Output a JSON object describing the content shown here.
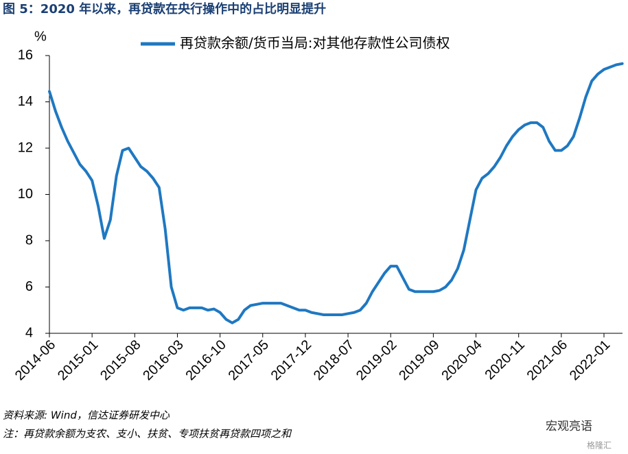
{
  "chart_data": {
    "type": "line",
    "title": "图 5：2020 年以来，再贷款在央行操作中的占比明显提升",
    "y_unit": "%",
    "categories": [
      "2014-06",
      null,
      null,
      null,
      null,
      null,
      null,
      "2015-01",
      null,
      null,
      null,
      null,
      null,
      null,
      "2015-08",
      null,
      null,
      null,
      null,
      null,
      null,
      "2016-03",
      null,
      null,
      null,
      null,
      null,
      null,
      "2016-10",
      null,
      null,
      null,
      null,
      null,
      null,
      "2017-05",
      null,
      null,
      null,
      null,
      null,
      null,
      "2017-12",
      null,
      null,
      null,
      null,
      null,
      null,
      "2018-07",
      null,
      null,
      null,
      null,
      null,
      null,
      "2019-02",
      null,
      null,
      null,
      null,
      null,
      null,
      "2019-09",
      null,
      null,
      null,
      null,
      null,
      null,
      "2020-04",
      null,
      null,
      null,
      null,
      null,
      null,
      "2020-11",
      null,
      null,
      null,
      null,
      null,
      null,
      "2021-06",
      null,
      null,
      null,
      null,
      null,
      null,
      "2022-01",
      null,
      null,
      null
    ],
    "series": [
      {
        "name": "再贷款余额/货币当局:对其他存款性公司债权",
        "color": "#1f78c1",
        "values": [
          14.45,
          13.6,
          12.9,
          12.3,
          11.8,
          11.3,
          11.0,
          10.6,
          9.5,
          8.1,
          8.9,
          10.8,
          11.9,
          12.0,
          11.6,
          11.2,
          11.0,
          10.7,
          10.3,
          8.5,
          6.0,
          5.1,
          5.0,
          5.1,
          5.1,
          5.1,
          5.0,
          5.05,
          4.9,
          4.6,
          4.45,
          4.6,
          5.0,
          5.2,
          5.25,
          5.3,
          5.3,
          5.3,
          5.3,
          5.2,
          5.1,
          5.0,
          5.0,
          4.9,
          4.85,
          4.8,
          4.8,
          4.8,
          4.8,
          4.85,
          4.9,
          5.0,
          5.3,
          5.8,
          6.2,
          6.6,
          6.9,
          6.9,
          6.4,
          5.9,
          5.8,
          5.8,
          5.8,
          5.8,
          5.85,
          6.0,
          6.3,
          6.8,
          7.6,
          8.9,
          10.2,
          10.7,
          10.9,
          11.2,
          11.6,
          12.1,
          12.5,
          12.8,
          13.0,
          13.1,
          13.1,
          12.9,
          12.3,
          11.9,
          11.9,
          12.1,
          12.5,
          13.3,
          14.2,
          14.9,
          15.2,
          15.4,
          15.5,
          15.6,
          15.65
        ]
      }
    ],
    "ylim": [
      4,
      16
    ],
    "yticks": [
      4,
      6,
      8,
      10,
      12,
      14,
      16
    ],
    "grid": false,
    "source": "资料来源: Wind，信达证券研发中心",
    "note": "注：再贷款余额为支农、支小、扶贫、专项扶贫再贷款四项之和",
    "watermark": [
      "宏观亮语",
      "格隆汇"
    ]
  }
}
